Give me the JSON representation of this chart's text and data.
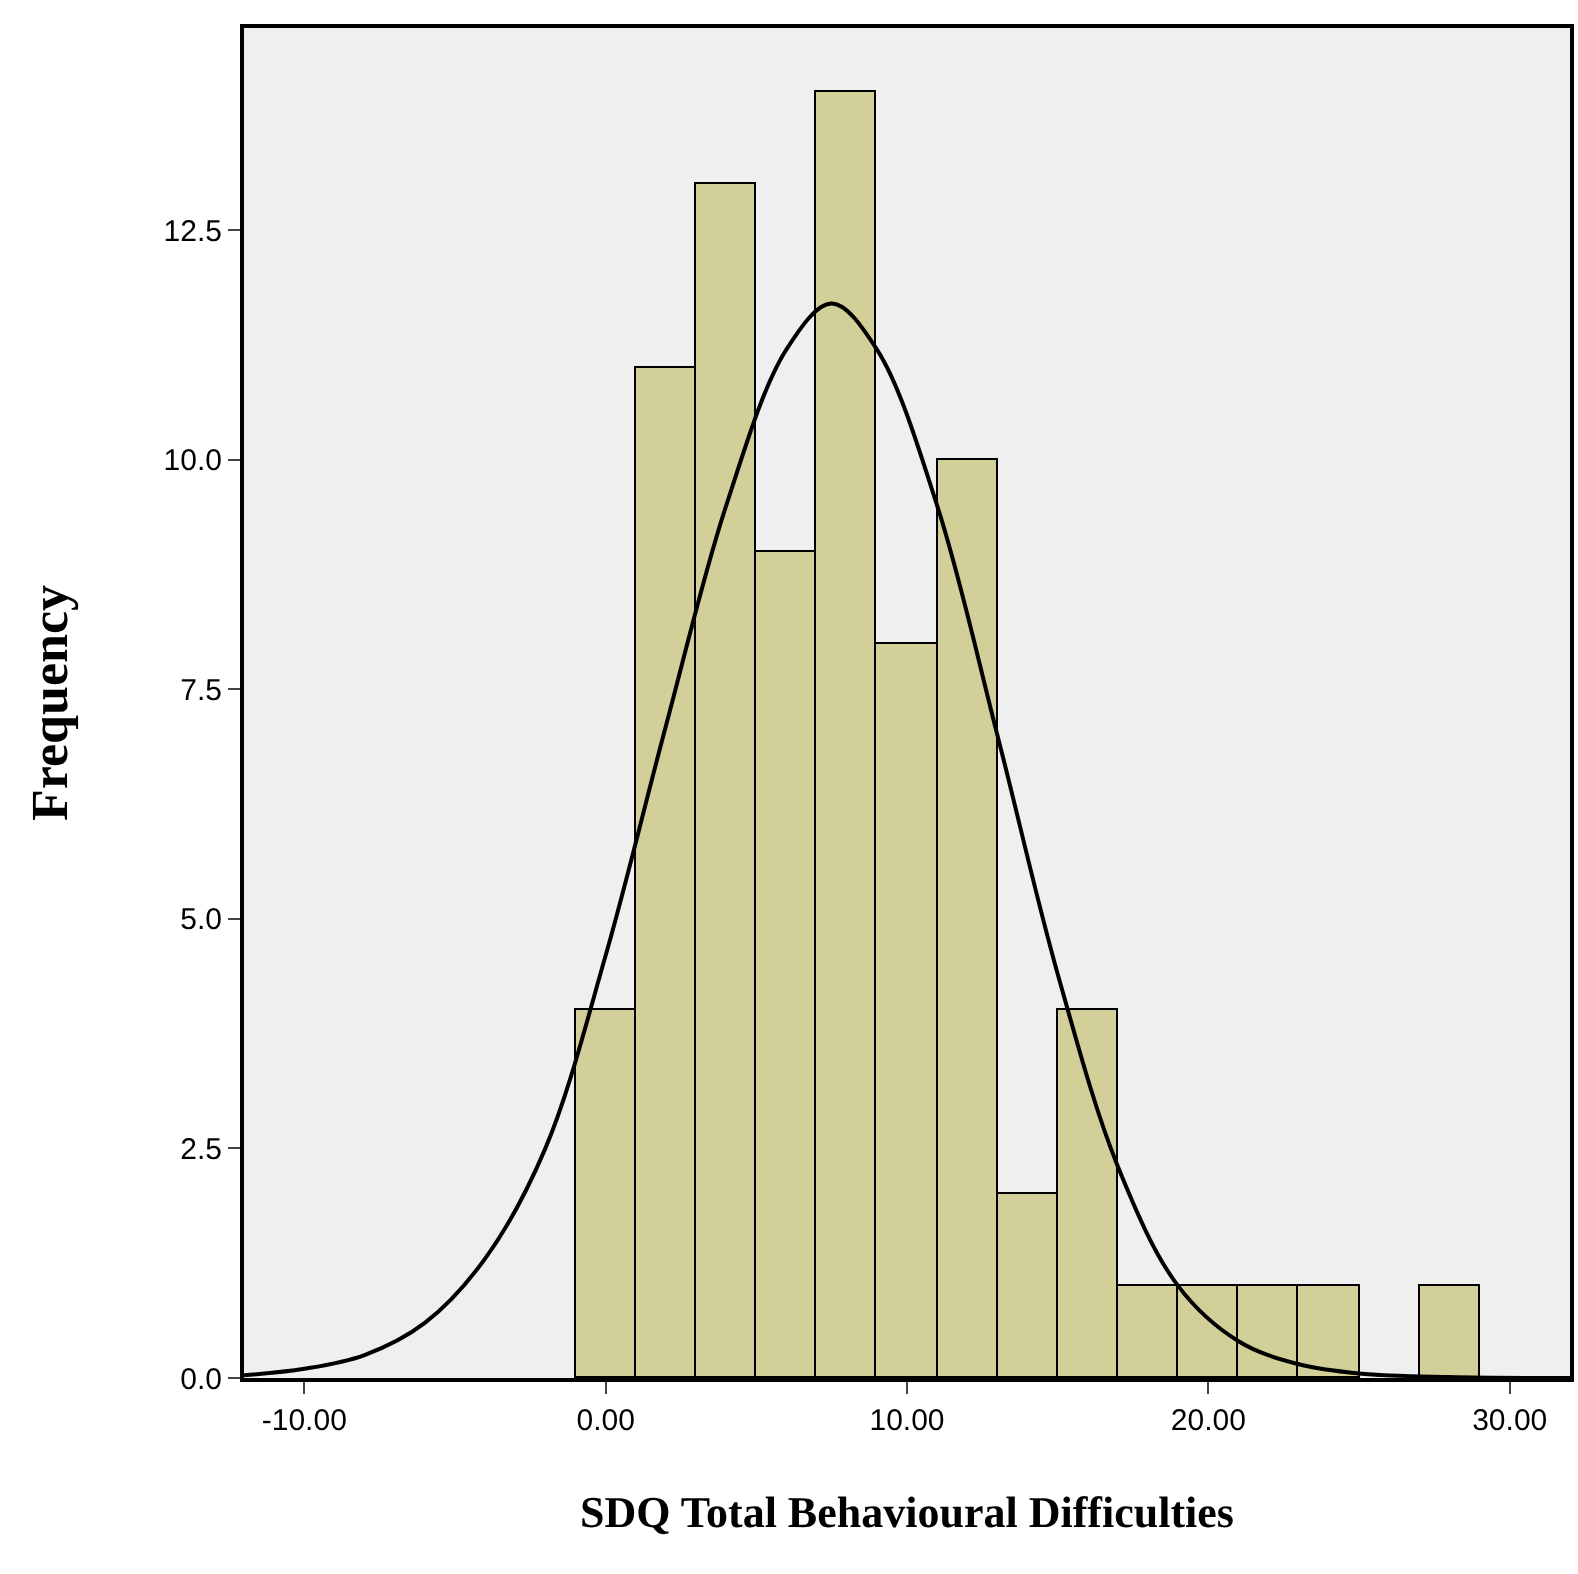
{
  "chart_data": {
    "type": "histogram",
    "xlabel": "SDQ Total Behavioural Difficulties",
    "ylabel": "Frequency",
    "bins": [
      -1,
      1,
      3,
      5,
      7,
      9,
      11,
      13,
      15,
      17,
      19,
      21,
      23,
      25,
      27,
      29
    ],
    "values": [
      4,
      11,
      13,
      9,
      14,
      8,
      10,
      2,
      4,
      1,
      1,
      1,
      1,
      0,
      1
    ],
    "color": "#d3cf98",
    "series": [
      {
        "type": "line",
        "color": "#000000",
        "x": [
          -12,
          -10,
          -8,
          -6,
          -4,
          -2,
          0,
          2,
          4,
          6,
          7.5,
          9,
          11,
          13,
          15,
          17,
          19,
          21,
          23,
          25,
          28,
          32
        ],
        "values": [
          0.03,
          0.1,
          0.25,
          0.6,
          1.3,
          2.5,
          4.6,
          7.1,
          9.5,
          11.2,
          11.7,
          11.2,
          9.5,
          7.0,
          4.4,
          2.3,
          1.0,
          0.4,
          0.15,
          0.05,
          0.01,
          0
        ]
      }
    ],
    "xlim": [
      -12,
      32
    ],
    "ylim": [
      0,
      14.7
    ],
    "xticks": [
      {
        "value": -10,
        "label": "-10.00"
      },
      {
        "value": 0,
        "label": "0.00"
      },
      {
        "value": 10,
        "label": "10.00"
      },
      {
        "value": 20,
        "label": "20.00"
      },
      {
        "value": 30,
        "label": "30.00"
      }
    ],
    "yticks": [
      {
        "value": 0,
        "label": "0.0"
      },
      {
        "value": 2.5,
        "label": "2.5"
      },
      {
        "value": 5,
        "label": "5.0"
      },
      {
        "value": 7.5,
        "label": "7.5"
      },
      {
        "value": 10,
        "label": "10.0"
      },
      {
        "value": 12.5,
        "label": "12.5"
      }
    ],
    "grid": false
  }
}
